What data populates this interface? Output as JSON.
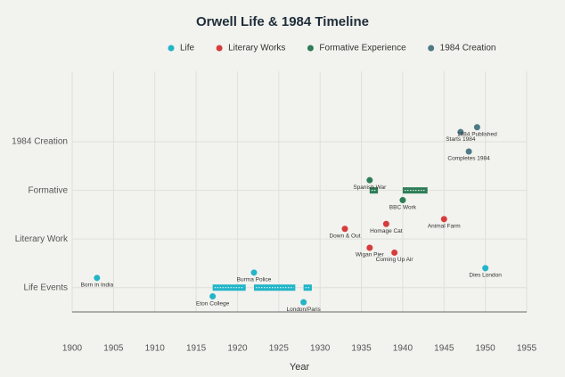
{
  "chart_data": {
    "type": "timeline",
    "title": "Orwell Life & 1984 Timeline",
    "x_label": "Year",
    "xlim": [
      1900,
      1955
    ],
    "xticks": [
      1900,
      1905,
      1910,
      1915,
      1920,
      1925,
      1930,
      1935,
      1940,
      1945,
      1950,
      1955
    ],
    "ylim": [
      -0.5,
      4.45
    ],
    "yticks": [
      {
        "value": 0,
        "label": "Life Events"
      },
      {
        "value": 1,
        "label": "Literary Work"
      },
      {
        "value": 2,
        "label": "Formative"
      },
      {
        "value": 3,
        "label": "1984 Creation"
      }
    ],
    "grid": true,
    "series": [
      {
        "name": "Life",
        "color": "#22b5c8",
        "x": [
          1903,
          1917,
          1922,
          1928,
          1950
        ],
        "y": [
          0.2,
          -0.18,
          0.31,
          -0.3,
          0.4
        ],
        "labels": [
          "Born in India",
          "Eton College",
          "Burma Police",
          "London/Paris",
          "Dies London"
        ]
      },
      {
        "name": "Literary Works",
        "color": "#d63c3c",
        "x": [
          1933,
          1936,
          1938,
          1939,
          1945
        ],
        "y": [
          1.21,
          0.82,
          1.31,
          0.72,
          1.41
        ],
        "labels": [
          "Down & Out",
          "Wigan Pier",
          "Homage Cat",
          "Coming Up Air",
          "Animal Farm"
        ]
      },
      {
        "name": "Formative Experience",
        "color": "#2e7d57",
        "x": [
          1936,
          1940
        ],
        "y": [
          2.21,
          1.8
        ],
        "labels": [
          "Spanish War",
          "BBC Work"
        ]
      },
      {
        "name": "1984 Creation",
        "color": "#4e7a86",
        "x": [
          1947,
          1948,
          1949
        ],
        "y": [
          3.2,
          2.8,
          3.3
        ],
        "labels": [
          "Starts 1984",
          "Completes 1984",
          "1984 Published"
        ]
      }
    ],
    "bars": [
      {
        "series": 0,
        "start": 1917,
        "end": 1921,
        "y": 0
      },
      {
        "series": 0,
        "start": 1922,
        "end": 1927,
        "y": 0
      },
      {
        "series": 0,
        "start": 1928,
        "end": 1929,
        "y": 0
      },
      {
        "series": 2,
        "start": 1936,
        "end": 1937,
        "y": 2
      },
      {
        "series": 2,
        "start": 1940,
        "end": 1943,
        "y": 2
      }
    ]
  }
}
